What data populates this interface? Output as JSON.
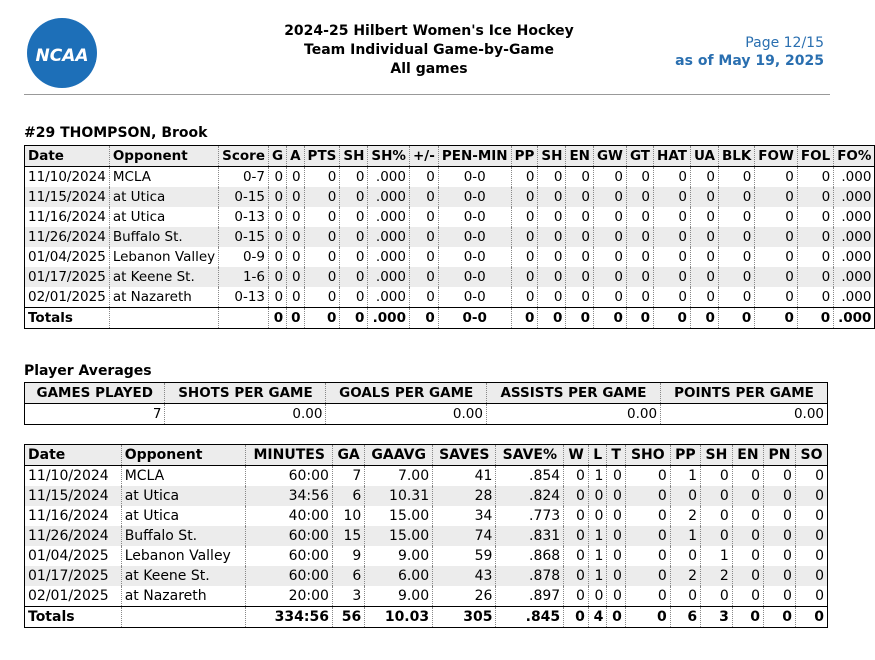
{
  "header": {
    "logo_text": "NCAA",
    "title": "2024-25 Hilbert Women's Ice Hockey",
    "subtitle": "Team Individual Game-by-Game",
    "scope": "All games",
    "page": "Page 12/15",
    "as_of": "as of May 19, 2025"
  },
  "player": {
    "name": "#29 THOMPSON, Brook"
  },
  "skater": {
    "columns": [
      "Date",
      "Opponent",
      "Score",
      "G",
      "A",
      "PTS",
      "SH",
      "SH%",
      "+/-",
      "PEN-MIN",
      "PP",
      "SH",
      "EN",
      "GW",
      "GT",
      "HAT",
      "UA",
      "BLK",
      "FOW",
      "FOL",
      "FO%"
    ],
    "rows": [
      [
        "11/10/2024",
        "MCLA",
        "0-7",
        "0",
        "0",
        "0",
        "0",
        ".000",
        "0",
        "0-0",
        "0",
        "0",
        "0",
        "0",
        "0",
        "0",
        "0",
        "0",
        "0",
        "0",
        ".000"
      ],
      [
        "11/15/2024",
        "at Utica",
        "0-15",
        "0",
        "0",
        "0",
        "0",
        ".000",
        "0",
        "0-0",
        "0",
        "0",
        "0",
        "0",
        "0",
        "0",
        "0",
        "0",
        "0",
        "0",
        ".000"
      ],
      [
        "11/16/2024",
        "at Utica",
        "0-13",
        "0",
        "0",
        "0",
        "0",
        ".000",
        "0",
        "0-0",
        "0",
        "0",
        "0",
        "0",
        "0",
        "0",
        "0",
        "0",
        "0",
        "0",
        ".000"
      ],
      [
        "11/26/2024",
        "Buffalo St.",
        "0-15",
        "0",
        "0",
        "0",
        "0",
        ".000",
        "0",
        "0-0",
        "0",
        "0",
        "0",
        "0",
        "0",
        "0",
        "0",
        "0",
        "0",
        "0",
        ".000"
      ],
      [
        "01/04/2025",
        "Lebanon Valley",
        "0-9",
        "0",
        "0",
        "0",
        "0",
        ".000",
        "0",
        "0-0",
        "0",
        "0",
        "0",
        "0",
        "0",
        "0",
        "0",
        "0",
        "0",
        "0",
        ".000"
      ],
      [
        "01/17/2025",
        "at Keene St.",
        "1-6",
        "0",
        "0",
        "0",
        "0",
        ".000",
        "0",
        "0-0",
        "0",
        "0",
        "0",
        "0",
        "0",
        "0",
        "0",
        "0",
        "0",
        "0",
        ".000"
      ],
      [
        "02/01/2025",
        "at Nazareth",
        "0-13",
        "0",
        "0",
        "0",
        "0",
        ".000",
        "0",
        "0-0",
        "0",
        "0",
        "0",
        "0",
        "0",
        "0",
        "0",
        "0",
        "0",
        "0",
        ".000"
      ]
    ],
    "totals": [
      "Totals",
      "",
      "",
      "0",
      "0",
      "0",
      "0",
      ".000",
      "0",
      "0-0",
      "0",
      "0",
      "0",
      "0",
      "0",
      "0",
      "0",
      "0",
      "0",
      "0",
      ".000"
    ]
  },
  "averages": {
    "section_title": "Player Averages",
    "columns": [
      "GAMES PLAYED",
      "SHOTS PER GAME",
      "GOALS PER GAME",
      "ASSISTS PER GAME",
      "POINTS PER GAME"
    ],
    "values": [
      "7",
      "0.00",
      "0.00",
      "0.00",
      "0.00"
    ]
  },
  "goalie": {
    "columns": [
      "Date",
      "Opponent",
      "MINUTES",
      "GA",
      "GAAVG",
      "SAVES",
      "SAVE%",
      "W",
      "L",
      "T",
      "SHO",
      "PP",
      "SH",
      "EN",
      "PN",
      "SO"
    ],
    "rows": [
      [
        "11/10/2024",
        "MCLA",
        "60:00",
        "7",
        "7.00",
        "41",
        ".854",
        "0",
        "1",
        "0",
        "0",
        "1",
        "0",
        "0",
        "0",
        "0"
      ],
      [
        "11/15/2024",
        "at Utica",
        "34:56",
        "6",
        "10.31",
        "28",
        ".824",
        "0",
        "0",
        "0",
        "0",
        "0",
        "0",
        "0",
        "0",
        "0"
      ],
      [
        "11/16/2024",
        "at Utica",
        "40:00",
        "10",
        "15.00",
        "34",
        ".773",
        "0",
        "0",
        "0",
        "0",
        "2",
        "0",
        "0",
        "0",
        "0"
      ],
      [
        "11/26/2024",
        "Buffalo St.",
        "60:00",
        "15",
        "15.00",
        "74",
        ".831",
        "0",
        "1",
        "0",
        "0",
        "1",
        "0",
        "0",
        "0",
        "0"
      ],
      [
        "01/04/2025",
        "Lebanon Valley",
        "60:00",
        "9",
        "9.00",
        "59",
        ".868",
        "0",
        "1",
        "0",
        "0",
        "0",
        "1",
        "0",
        "0",
        "0"
      ],
      [
        "01/17/2025",
        "at Keene St.",
        "60:00",
        "6",
        "6.00",
        "43",
        ".878",
        "0",
        "1",
        "0",
        "0",
        "2",
        "2",
        "0",
        "0",
        "0"
      ],
      [
        "02/01/2025",
        "at Nazareth",
        "20:00",
        "3",
        "9.00",
        "26",
        ".897",
        "0",
        "0",
        "0",
        "0",
        "0",
        "0",
        "0",
        "0",
        "0"
      ]
    ],
    "totals": [
      "Totals",
      "",
      "334:56",
      "56",
      "10.03",
      "305",
      ".845",
      "0",
      "4",
      "0",
      "0",
      "6",
      "3",
      "0",
      "0",
      "0"
    ]
  },
  "colors": {
    "ncaa_blue": "#1d6fb8",
    "header_blue": "#2a6fb0",
    "row_alt": "#ececec"
  }
}
